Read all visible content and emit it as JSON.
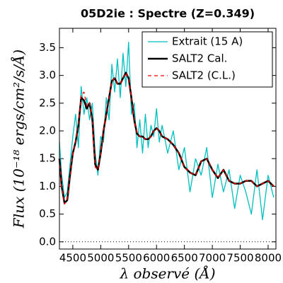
{
  "chart_data": {
    "type": "line",
    "title": "05D2ie : Spectre (Z=0.349)",
    "x_label": "λ observé (Å)",
    "y_label": "Flux (10⁻¹⁸ ergs/cm²/s/Å)",
    "x": [
      4260,
      4300,
      4350,
      4400,
      4450,
      4500,
      4550,
      4600,
      4650,
      4700,
      4750,
      4800,
      4850,
      4900,
      4950,
      5000,
      5050,
      5100,
      5150,
      5200,
      5250,
      5300,
      5350,
      5400,
      5450,
      5500,
      5550,
      5600,
      5650,
      5700,
      5750,
      5800,
      5850,
      5900,
      5950,
      6000,
      6050,
      6100,
      6200,
      6300,
      6400,
      6500,
      6600,
      6700,
      6800,
      6900,
      7000,
      7100,
      7200,
      7300,
      7400,
      7500,
      7600,
      7700,
      7800,
      7900,
      8000,
      8100
    ],
    "series": [
      {
        "name": "Extrait (15 A)",
        "color": "#00bfbf",
        "dash": false,
        "width": 1.3,
        "values": [
          1.8,
          1.2,
          0.8,
          0.9,
          1.4,
          1.9,
          2.3,
          1.7,
          2.8,
          2.3,
          2.6,
          2.2,
          2.5,
          1.6,
          1.2,
          1.9,
          1.8,
          2.6,
          2.2,
          3.2,
          2.7,
          3.3,
          2.6,
          3.4,
          2.8,
          3.6,
          2.3,
          2.5,
          1.7,
          2.2,
          1.6,
          2.3,
          1.7,
          2.1,
          1.9,
          2.4,
          1.8,
          2.1,
          1.6,
          2.0,
          1.3,
          1.7,
          0.9,
          1.5,
          1.2,
          1.7,
          0.8,
          1.4,
          0.9,
          1.3,
          0.6,
          1.2,
          0.9,
          0.5,
          1.3,
          0.4,
          1.2,
          0.8
        ]
      },
      {
        "name": "SALT2 Cal.",
        "color": "#000000",
        "dash": false,
        "width": 2.5,
        "values": [
          1.5,
          1.0,
          0.7,
          0.75,
          1.2,
          1.6,
          1.8,
          2.1,
          2.6,
          2.55,
          2.4,
          2.5,
          2.2,
          1.4,
          1.3,
          1.6,
          2.0,
          2.3,
          2.6,
          2.9,
          2.95,
          2.85,
          2.85,
          2.95,
          3.05,
          2.95,
          2.6,
          2.2,
          1.95,
          1.9,
          1.9,
          1.85,
          1.85,
          1.9,
          2.0,
          2.05,
          2.0,
          1.9,
          1.85,
          1.75,
          1.6,
          1.35,
          1.25,
          1.2,
          1.45,
          1.5,
          1.3,
          1.15,
          1.3,
          1.1,
          1.05,
          1.05,
          1.1,
          1.1,
          1.0,
          1.05,
          1.1,
          1.0
        ]
      },
      {
        "name": "SALT2 (C.L.)",
        "color": "#ff0000",
        "dash": true,
        "width": 1.3,
        "values": [
          1.5,
          1.0,
          0.68,
          0.75,
          1.2,
          1.6,
          1.8,
          2.1,
          2.65,
          2.7,
          2.45,
          2.5,
          2.2,
          1.35,
          1.3,
          1.6,
          2.0,
          2.3,
          2.6,
          2.9,
          2.95,
          2.85,
          2.85,
          2.95,
          3.05,
          2.95,
          2.6,
          2.2,
          1.95,
          1.9,
          1.9,
          1.85,
          1.85,
          1.9,
          2.0,
          2.05,
          2.0,
          1.9,
          1.85,
          1.75,
          1.6,
          1.35,
          1.25,
          1.2,
          1.45,
          1.5,
          1.3,
          1.15,
          1.3,
          1.1,
          1.05,
          1.05,
          1.1,
          1.1,
          1.0,
          1.05,
          1.1,
          1.0
        ]
      }
    ],
    "xlim": [
      4260,
      8140
    ],
    "ylim": [
      -0.13,
      3.85
    ],
    "xticks": [
      4500,
      5000,
      5500,
      6000,
      6500,
      7000,
      7500,
      8000
    ],
    "yticks": [
      {
        "value": 0,
        "label": "0.0"
      },
      0.5,
      {
        "value": 1,
        "label": "1.0"
      },
      1.5,
      {
        "value": 2,
        "label": "2.0"
      },
      2.5,
      {
        "value": 3,
        "label": "3.0"
      },
      3.5
    ],
    "zero_line": true,
    "legend": "upper right"
  }
}
